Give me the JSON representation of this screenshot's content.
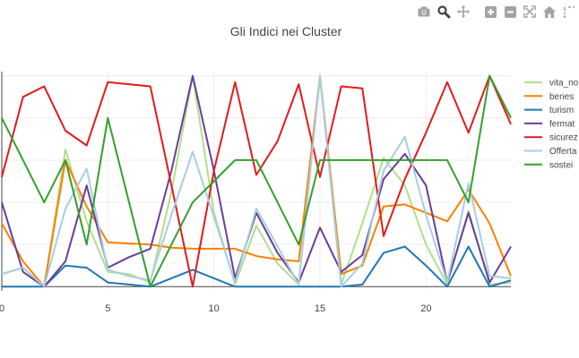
{
  "toolbar": {
    "icons": [
      "camera-icon",
      "zoom-icon",
      "pan-icon",
      "zoom-in-icon",
      "zoom-out-icon",
      "autoscale-icon",
      "home-icon",
      "spike-lines-icon"
    ],
    "icon_color": "#a3a3a3",
    "active_color": "#444444"
  },
  "chart_data": {
    "type": "line",
    "title": "Gli Indici nei Cluster",
    "xlabel": "",
    "ylabel": "",
    "xlim": [
      0,
      24
    ],
    "ylim": [
      -0.02,
      1.02
    ],
    "grid": true,
    "legend_position": "right",
    "x_ticks": [
      0,
      5,
      10,
      15,
      20
    ],
    "x": [
      0,
      1,
      2,
      3,
      4,
      5,
      6,
      7,
      8,
      9,
      10,
      11,
      12,
      13,
      14,
      15,
      16,
      17,
      18,
      19,
      20,
      21,
      22,
      23,
      24
    ],
    "series": [
      {
        "name": "vita_notturna",
        "legend_label": "vita_no",
        "color": "#b2df8a",
        "values": [
          0.06,
          0.09,
          0.0,
          0.65,
          0.31,
          0.07,
          0.06,
          0.02,
          0.45,
          1.0,
          0.35,
          0.01,
          0.29,
          0.11,
          0.01,
          1.0,
          0.01,
          0.3,
          0.61,
          0.48,
          0.2,
          0.01,
          0.36,
          0.01,
          0.02
        ]
      },
      {
        "name": "benessere",
        "legend_label": "benes",
        "color": "#ff7f00",
        "values": [
          0.3,
          0.12,
          0.0,
          0.6,
          0.38,
          0.21,
          0.205,
          0.2,
          0.185,
          0.18,
          0.18,
          0.18,
          0.145,
          0.13,
          0.12,
          1.0,
          0.06,
          0.1,
          0.38,
          0.39,
          0.35,
          0.31,
          0.46,
          0.3,
          0.05
        ]
      },
      {
        "name": "turismo",
        "legend_label": "turism",
        "color": "#1f78b4",
        "values": [
          0.0,
          0.0,
          0.0,
          0.1,
          0.09,
          0.02,
          0.01,
          0.0,
          0.04,
          0.08,
          0.04,
          0.0,
          0.0,
          0.0,
          0.0,
          0.0,
          0.0,
          0.01,
          0.16,
          0.19,
          0.1,
          0.0,
          0.19,
          0.0,
          0.03
        ]
      },
      {
        "name": "fermate",
        "legend_label": "fermat",
        "color": "#6a3d9a",
        "values": [
          0.4,
          0.07,
          0.0,
          0.12,
          0.48,
          0.09,
          0.14,
          0.18,
          0.55,
          1.0,
          0.55,
          0.04,
          0.35,
          0.16,
          0.02,
          0.28,
          0.07,
          0.15,
          0.51,
          0.63,
          0.48,
          0.02,
          0.35,
          0.02,
          0.19
        ]
      },
      {
        "name": "sicurezza",
        "legend_label": "sicurez",
        "color": "#e31a1c",
        "values": [
          0.52,
          0.9,
          0.95,
          0.74,
          0.67,
          0.97,
          0.96,
          0.95,
          0.48,
          0.0,
          0.55,
          0.97,
          0.53,
          0.69,
          0.96,
          0.52,
          0.95,
          0.94,
          0.24,
          0.51,
          0.73,
          0.97,
          0.73,
          1.0,
          0.77
        ]
      },
      {
        "name": "Offerta",
        "legend_label": "Offerta",
        "color": "#a6cee3",
        "values": [
          0.06,
          0.09,
          0.0,
          0.37,
          0.56,
          0.08,
          0.05,
          0.03,
          0.34,
          0.64,
          0.33,
          0.02,
          0.37,
          0.19,
          0.01,
          1.0,
          0.0,
          0.11,
          0.55,
          0.71,
          0.34,
          0.02,
          0.49,
          0.05,
          0.04
        ]
      },
      {
        "name": "sostenibilita",
        "legend_label": "sostei",
        "color": "#33a02c",
        "values": [
          0.8,
          0.6,
          0.4,
          0.6,
          0.2,
          0.8,
          0.4,
          0.0,
          0.2,
          0.4,
          0.5,
          0.6,
          0.6,
          0.4,
          0.2,
          0.6,
          0.6,
          0.6,
          0.6,
          0.6,
          0.6,
          0.6,
          0.4,
          1.0,
          0.8
        ]
      }
    ]
  }
}
